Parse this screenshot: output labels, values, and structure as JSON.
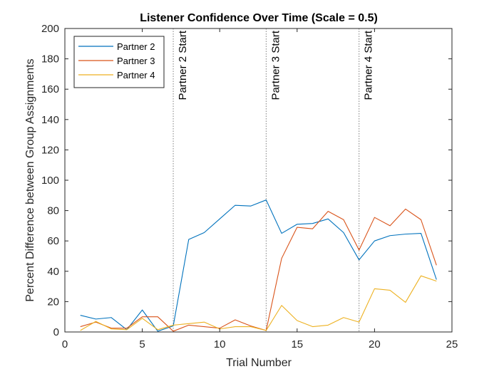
{
  "chart_data": {
    "type": "line",
    "title": "Listener Confidence Over Time (Scale = 0.5)",
    "xlabel": "Trial Number",
    "ylabel": "Percent Difference between Group Assignments",
    "xlim": [
      0,
      25
    ],
    "ylim": [
      0,
      200
    ],
    "xticks": [
      0,
      5,
      10,
      15,
      20,
      25
    ],
    "yticks": [
      0,
      20,
      40,
      60,
      80,
      100,
      120,
      140,
      160,
      180,
      200
    ],
    "grid": false,
    "legend_position": "top-left",
    "x": [
      1,
      2,
      3,
      4,
      5,
      6,
      7,
      8,
      9,
      10,
      11,
      12,
      13,
      14,
      15,
      16,
      17,
      18,
      19,
      20,
      21,
      22,
      23,
      24
    ],
    "series": [
      {
        "name": "Partner 2",
        "color": "#0072BD",
        "values": [
          11,
          8.5,
          9.5,
          1.5,
          14.5,
          0.5,
          4,
          61,
          65.5,
          74.5,
          83.5,
          83,
          87,
          65,
          71,
          71.5,
          74.5,
          65.5,
          47.5,
          60,
          63.5,
          64.5,
          65,
          34.5
        ]
      },
      {
        "name": "Partner 3",
        "color": "#D95319",
        "values": [
          3.5,
          6.5,
          2.5,
          2.5,
          10,
          10,
          0.5,
          4.5,
          3.5,
          2.5,
          8,
          4,
          1,
          48.5,
          69,
          68,
          79.5,
          74,
          54,
          75.5,
          70,
          81,
          74,
          44
        ]
      },
      {
        "name": "Partner 4",
        "color": "#EDB120",
        "values": [
          1,
          7,
          2,
          1.5,
          9,
          1.5,
          4.5,
          5.5,
          6.5,
          2,
          3.5,
          3.5,
          1,
          17.5,
          7.5,
          3.5,
          4.5,
          9.5,
          6.5,
          28.5,
          27.5,
          19.5,
          37,
          33.5
        ]
      }
    ],
    "vlines": [
      {
        "x": 7,
        "label": "Partner 2 Start"
      },
      {
        "x": 13,
        "label": "Partner 3 Start"
      },
      {
        "x": 19,
        "label": "Partner 4 Start"
      }
    ]
  }
}
